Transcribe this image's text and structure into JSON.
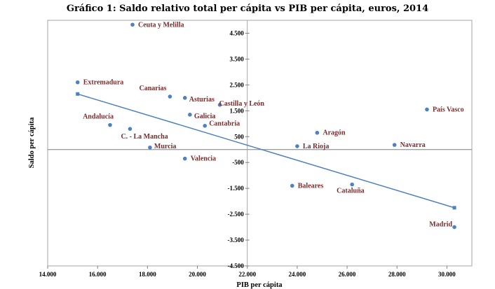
{
  "chart_data": {
    "type": "scatter",
    "title": "Gráfico 1: Saldo relativo total per cápita vs PIB per cápita, euros, 2014",
    "xlabel": "PIB per cápita",
    "ylabel": "Saldo per cápita",
    "xlim": [
      14000,
      31000
    ],
    "ylim": [
      -4500,
      5000
    ],
    "xticks": [
      14000,
      16000,
      18000,
      20000,
      22000,
      24000,
      26000,
      28000,
      30000
    ],
    "xtick_labels": [
      "14.000",
      "16.000",
      "18.000",
      "20.000",
      "22.000",
      "24.000",
      "26.000",
      "28.000",
      "30.000"
    ],
    "yticks": [
      4500,
      3500,
      2500,
      1500,
      500,
      -500,
      -1500,
      -2500,
      -3500,
      -4500
    ],
    "ytick_labels": [
      "4.500",
      "3.500",
      "2.500",
      "1.500",
      "500",
      "-500",
      "-1.500",
      "-2.500",
      "-3.500",
      "-4.500"
    ],
    "x_reference_line": 22000,
    "y_reference_line": 0,
    "point_color": "#4f81bd",
    "label_color": "#7b2c2c",
    "points": [
      {
        "name": "Ceuta y Melilla",
        "x": 17400,
        "y": 4830
      },
      {
        "name": "Extremadura",
        "x": 15200,
        "y": 2600
      },
      {
        "name": "Canarias",
        "x": 18900,
        "y": 2050
      },
      {
        "name": "Asturias",
        "x": 19500,
        "y": 2000
      },
      {
        "name": "Castilla y León",
        "x": 20900,
        "y": 1730
      },
      {
        "name": "País Vasco",
        "x": 29200,
        "y": 1550
      },
      {
        "name": "Galicia",
        "x": 19700,
        "y": 1350
      },
      {
        "name": "Andalucía",
        "x": 16500,
        "y": 950
      },
      {
        "name": "Cantabria",
        "x": 20300,
        "y": 920
      },
      {
        "name": "C. - La Mancha",
        "x": 17300,
        "y": 800
      },
      {
        "name": "Aragón",
        "x": 24800,
        "y": 650
      },
      {
        "name": "Navarra",
        "x": 27900,
        "y": 180
      },
      {
        "name": "La Rioja",
        "x": 24000,
        "y": 130
      },
      {
        "name": "Murcia",
        "x": 18100,
        "y": 80
      },
      {
        "name": "Valencia",
        "x": 19500,
        "y": -350
      },
      {
        "name": "Baleares",
        "x": 23800,
        "y": -1400
      },
      {
        "name": "Cataluña",
        "x": 26200,
        "y": -1350
      },
      {
        "name": "Madrid",
        "x": 30300,
        "y": -3000
      }
    ],
    "trendline": {
      "x": [
        15200,
        30300
      ],
      "y": [
        2150,
        -2250
      ]
    },
    "grid": false,
    "legend": "none"
  }
}
